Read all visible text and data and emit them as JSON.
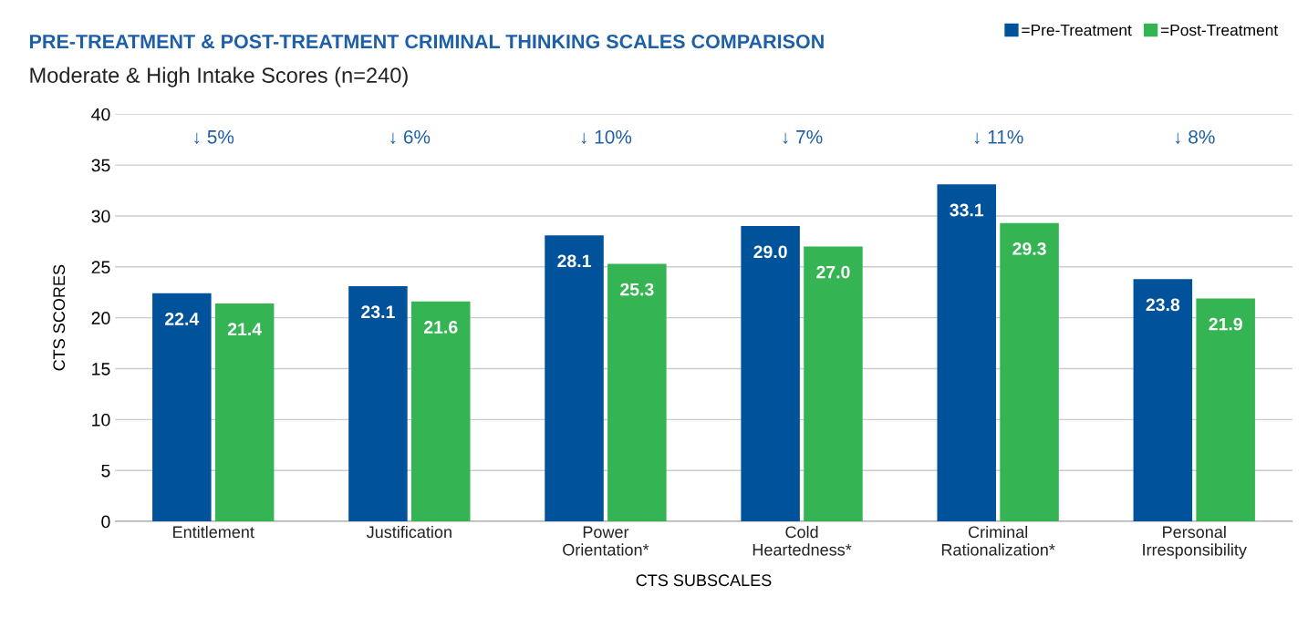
{
  "chart_data": {
    "type": "bar",
    "title": "PRE-TREATMENT & POST-TREATMENT CRIMINAL THINKING SCALES COMPARISON",
    "subtitle": "Moderate & High Intake Scores (n=240)",
    "xlabel": "CTS SUBSCALES",
    "ylabel": "CTS SCORES",
    "categories": [
      "Entitlement",
      "Justification",
      "Power\nOrientation*",
      "Cold\nHeartedness*",
      "Criminal\nRationalization*",
      "Personal\nIrresponsibility"
    ],
    "series": [
      {
        "name": "=Pre-Treatment",
        "color": "#00539b",
        "values": [
          22.4,
          23.1,
          28.1,
          29.0,
          33.1,
          23.8
        ],
        "value_labels": [
          "22.4",
          "23.1",
          "28.1",
          "29.0",
          "33.1",
          "23.8"
        ]
      },
      {
        "name": "=Post-Treatment",
        "color": "#35b454",
        "values": [
          21.4,
          21.6,
          25.3,
          27.0,
          29.3,
          21.9
        ],
        "value_labels": [
          "21.4",
          "21.6",
          "25.3",
          "27.0",
          "29.3",
          "21.9"
        ]
      }
    ],
    "annotations": [
      "↓ 5%",
      "↓ 6%",
      "↓ 10%",
      "↓ 7%",
      "↓ 11%",
      "↓ 8%"
    ],
    "ylim": [
      0,
      40
    ],
    "yticks": [
      0,
      5,
      10,
      15,
      20,
      25,
      30,
      35,
      40
    ],
    "grid": "y",
    "legend": "top right"
  }
}
